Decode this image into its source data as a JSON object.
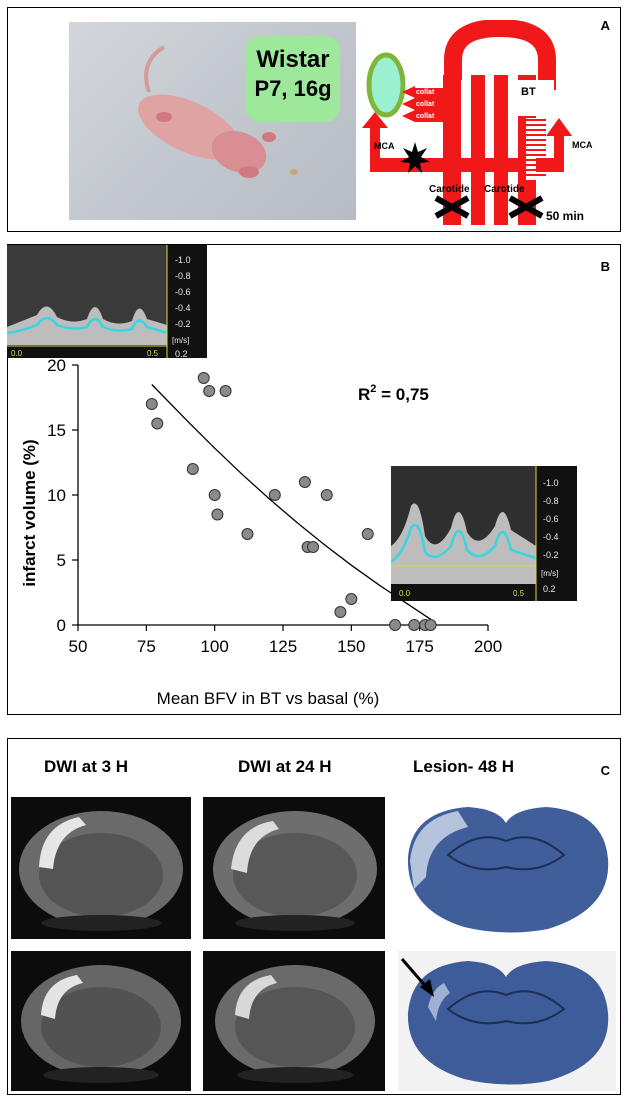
{
  "panel_a": {
    "label": "A",
    "animal": {
      "strain": "Wistar",
      "info": "P7, 16g"
    },
    "diagram": {
      "collat_labels": [
        "collat",
        "collat",
        "collat"
      ],
      "mca_left": "MCA",
      "mca_right": "MCA",
      "bt": "BT",
      "carotide_left": "Carotide",
      "carotide_right": "Carotide",
      "duration": "50 min"
    },
    "colors": {
      "vessel": "#f01818",
      "brain": "#9bf0cf",
      "brain_ring": "#7fb53a",
      "badge": "#9ee89c"
    }
  },
  "panel_b": {
    "label": "B",
    "r2_text": "R",
    "r2_sup": "2",
    "r2_value": " = 0,75",
    "doppler_scale": [
      "-1.0",
      "-0.8",
      "-0.6",
      "-0.4",
      "-0.2",
      "0.2"
    ],
    "doppler_unit": "[m/s]",
    "doppler_time": [
      "0.0",
      "0.5"
    ],
    "chart_data": {
      "type": "scatter",
      "xlabel": "Mean BFV in BT vs basal (%)",
      "ylabel": "infarct volume (%)",
      "xlim": [
        50,
        200
      ],
      "ylim": [
        0,
        20
      ],
      "xticks": [
        50,
        75,
        100,
        125,
        150,
        175,
        200
      ],
      "yticks": [
        0,
        5,
        10,
        15,
        20
      ],
      "points": [
        [
          77,
          17
        ],
        [
          79,
          15.5
        ],
        [
          92,
          12
        ],
        [
          96,
          19
        ],
        [
          98,
          18
        ],
        [
          100,
          10
        ],
        [
          101,
          8.5
        ],
        [
          104,
          18
        ],
        [
          112,
          7
        ],
        [
          122,
          10
        ],
        [
          133,
          11
        ],
        [
          134,
          6
        ],
        [
          136,
          6
        ],
        [
          141,
          10
        ],
        [
          146,
          1
        ],
        [
          150,
          2
        ],
        [
          156,
          7
        ],
        [
          166,
          0
        ],
        [
          173,
          0
        ],
        [
          177,
          0
        ],
        [
          179,
          0
        ]
      ],
      "fit_curve": [
        [
          77,
          18.5
        ],
        [
          90,
          15.7
        ],
        [
          100,
          13.6
        ],
        [
          110,
          11.6
        ],
        [
          120,
          9.7
        ],
        [
          130,
          7.9
        ],
        [
          140,
          6.2
        ],
        [
          150,
          4.6
        ],
        [
          160,
          3.1
        ],
        [
          170,
          1.7
        ],
        [
          180,
          0.3
        ]
      ],
      "annotation": "R² = 0,75"
    }
  },
  "panel_c": {
    "label": "C",
    "headers": [
      "DWI at 3 H",
      "DWI at 24 H",
      "Lesion- 48 H"
    ],
    "rows": 2
  }
}
